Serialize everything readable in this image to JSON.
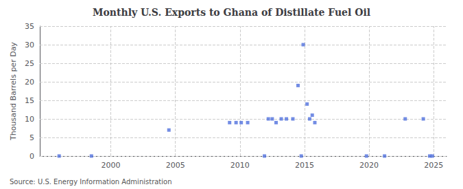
{
  "chart_data": {
    "type": "scatter",
    "title": "Monthly U.S. Exports to Ghana of Distillate Fuel Oil",
    "ylabel": "Thousand Barrels per Day",
    "annotation": "Source: U.S. Energy Information Administration",
    "x": [
      1996.0,
      1998.5,
      2004.5,
      2009.2,
      2009.7,
      2010.1,
      2010.6,
      2011.9,
      2012.2,
      2012.5,
      2012.8,
      2013.2,
      2013.6,
      2014.1,
      2014.5,
      2014.75,
      2014.9,
      2015.2,
      2015.4,
      2015.6,
      2015.8,
      2019.8,
      2021.2,
      2022.8,
      2024.2,
      2024.7,
      2024.9
    ],
    "values": [
      0,
      0,
      7,
      9,
      9,
      9,
      9,
      0,
      10,
      10,
      9,
      10,
      10,
      10,
      19,
      0,
      30,
      14,
      10,
      11,
      9,
      0,
      0,
      10,
      10,
      0,
      0
    ],
    "marker": "square",
    "xlim": [
      1994.5,
      2026
    ],
    "xticks": [
      2000,
      2005,
      2010,
      2015,
      2020,
      2025
    ],
    "ylim": [
      0,
      35
    ],
    "yticks": [
      0,
      5,
      10,
      15,
      20,
      25,
      30,
      35
    ],
    "grid": true
  }
}
